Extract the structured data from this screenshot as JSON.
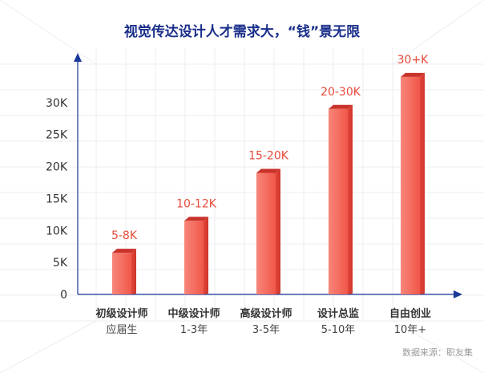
{
  "chart_data": {
    "type": "bar",
    "title": "视觉传达设计人才需求大，“钱”景无限",
    "categories": [
      "初级设计师",
      "中级设计师",
      "高级设计师",
      "设计总监",
      "自由创业"
    ],
    "subcategories": [
      "应届生",
      "1-3年",
      "3-5年",
      "5-10年",
      "10年+"
    ],
    "values": [
      6500,
      11500,
      19000,
      29000,
      34000
    ],
    "data_labels": [
      "5-8K",
      "10-12K",
      "15-20K",
      "20-30K",
      "30+K"
    ],
    "yticks": [
      "0",
      "5K",
      "10K",
      "15K",
      "20K",
      "25K",
      "30K"
    ],
    "ytick_values": [
      0,
      5000,
      10000,
      15000,
      20000,
      25000,
      30000
    ],
    "ylim": [
      0,
      37500
    ],
    "xlabel": "",
    "ylabel": "",
    "source": "数据来源：职友集",
    "colors": {
      "title": "#1a2f8a",
      "axis": "#1a3a9a",
      "bar_front": "#f0574a",
      "bar_front_light": "#f7867a",
      "bar_side": "#d83a2e",
      "bar_top": "#c9332a",
      "label": "#e8493a"
    }
  }
}
